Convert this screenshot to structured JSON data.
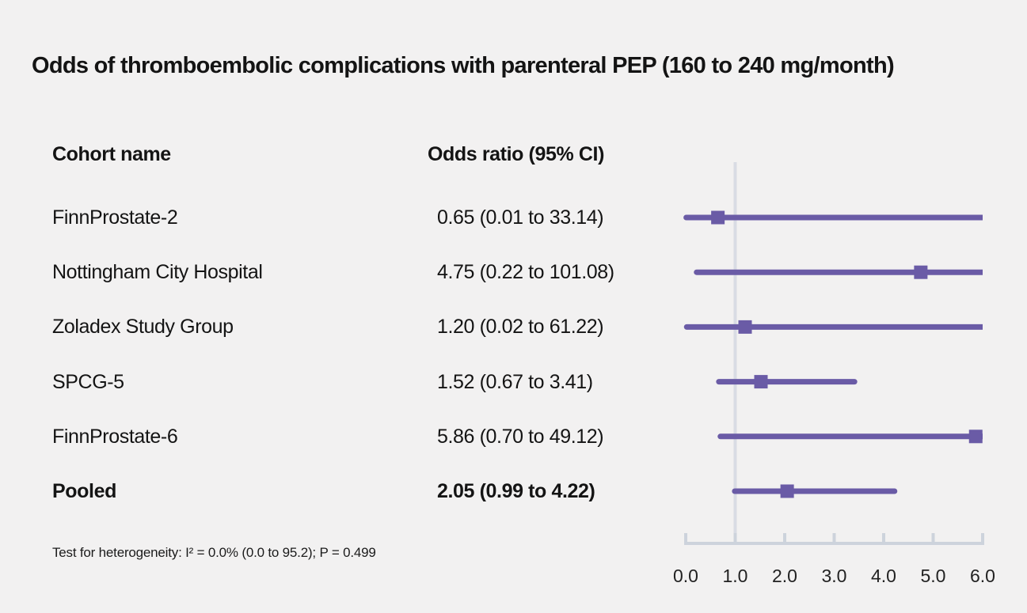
{
  "chart_data": {
    "type": "forest",
    "title": "Odds of thromboembolic complications with parenteral PEP (160 to 240 mg/month)",
    "columns": [
      "Cohort name",
      "Odds ratio (95% CI)"
    ],
    "studies": [
      {
        "name": "FinnProstate-2",
        "label": "0.65 (0.01 to 33.14)",
        "or": 0.65,
        "lo": 0.01,
        "hi": 33.14,
        "pooled": false
      },
      {
        "name": "Nottingham City Hospital",
        "label": "4.75 (0.22 to 101.08)",
        "or": 4.75,
        "lo": 0.22,
        "hi": 101.08,
        "pooled": false
      },
      {
        "name": "Zoladex Study Group",
        "label": "1.20 (0.02 to 61.22)",
        "or": 1.2,
        "lo": 0.02,
        "hi": 61.22,
        "pooled": false
      },
      {
        "name": "SPCG-5",
        "label": "1.52 (0.67 to 3.41)",
        "or": 1.52,
        "lo": 0.67,
        "hi": 3.41,
        "pooled": false
      },
      {
        "name": "FinnProstate-6",
        "label": "5.86 (0.70 to 49.12)",
        "or": 5.86,
        "lo": 0.7,
        "hi": 49.12,
        "pooled": false
      },
      {
        "name": "Pooled",
        "label": "2.05 (0.99 to 4.22)",
        "or": 2.05,
        "lo": 0.99,
        "hi": 4.22,
        "pooled": true
      }
    ],
    "x_axis": {
      "range": [
        0,
        6
      ],
      "ticks": [
        0,
        1,
        2,
        3,
        4,
        5,
        6
      ],
      "tick_labels": [
        "0.0",
        "1.0",
        "2.0",
        "3.0",
        "4.0",
        "5.0",
        "6.0"
      ],
      "reference_line": 1.0,
      "grid": false
    },
    "footnote": "Test for heterogeneity: I² = 0.0% (0.0 to 95.2); P = 0.499",
    "colors": {
      "marker": "#6a5ba6",
      "ci_line": "#6a5ba6",
      "reference_line": "#d9dce4",
      "axis": "#cdd3dc",
      "background": "#f2f1f1",
      "text": "#141414",
      "tick_label": "#222222"
    }
  }
}
